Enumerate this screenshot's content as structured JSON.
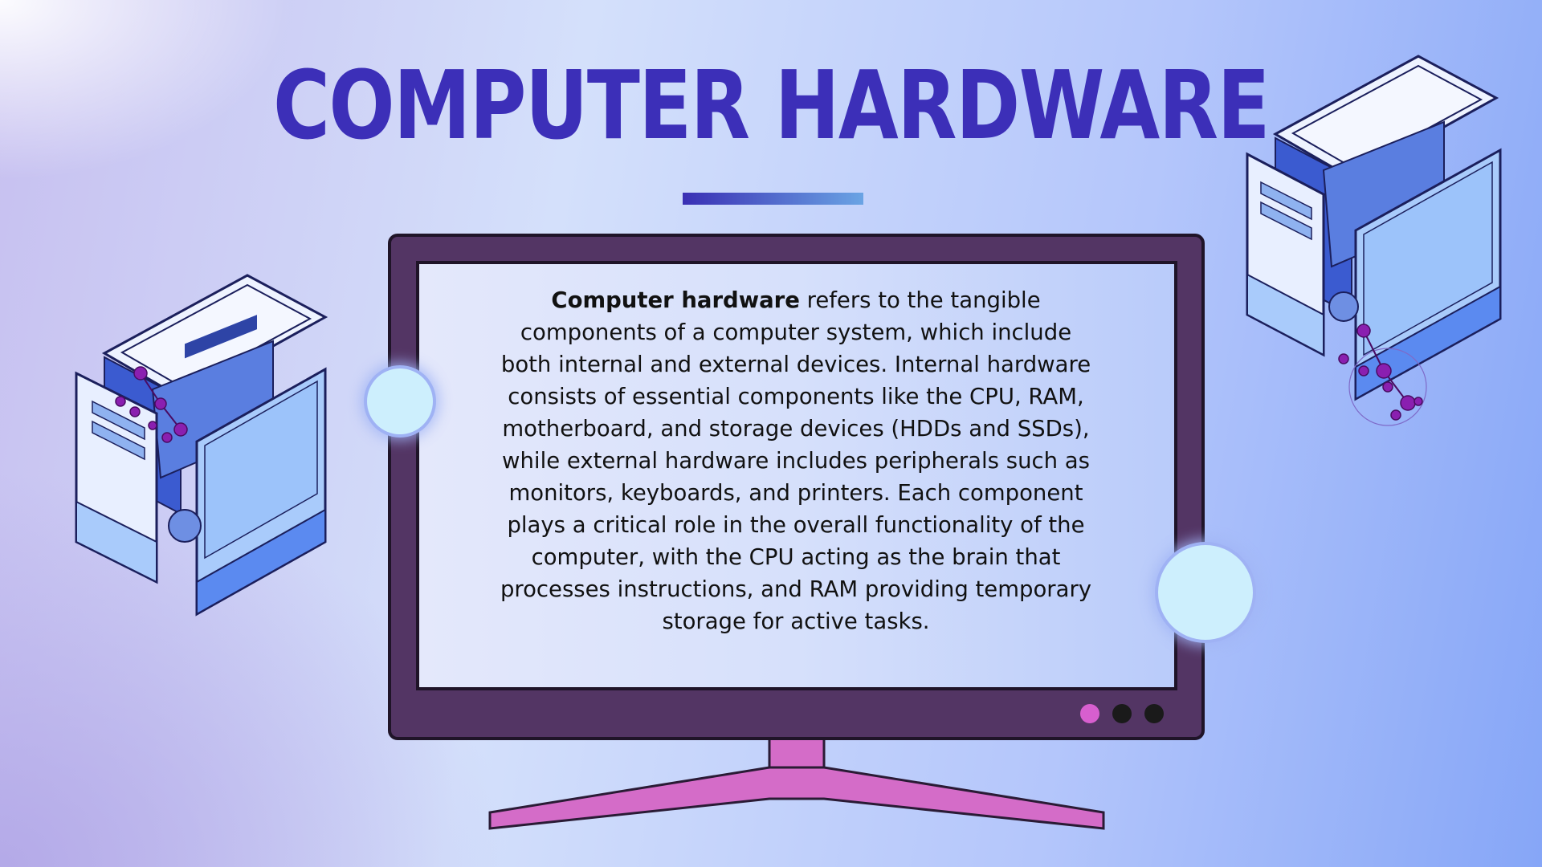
{
  "slide": {
    "title": "COMPUTER HARDWARE",
    "body_bold": "Computer hardware",
    "body_rest": " refers to the tangible components of a computer system, which include both internal and external devices. Internal hardware consists of essential components like the CPU, RAM, motherboard, and storage devices (HDDs and SSDs), while external hardware includes peripherals such as monitors, keyboards, and printers. Each component plays a critical role in the overall functionality of the computer, with the CPU acting as the brain that processes instructions, and RAM providing temporary storage for active tasks."
  },
  "colors": {
    "title": "#3c2fb8",
    "monitor_frame": "#533564",
    "monitor_stand": "#d46cc8",
    "bubble_fill": "#cdeffd",
    "dot_pink": "#d75fcf",
    "dot_dark": "#1a1a1a",
    "case_accent": "#8a1fb0"
  },
  "icons": {
    "left_case": "computer-case-icon",
    "right_case": "computer-case-icon"
  }
}
